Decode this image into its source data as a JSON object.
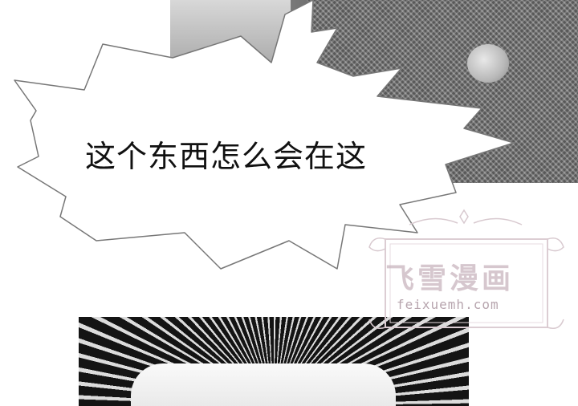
{
  "speech_bubble": {
    "text": "这个东西怎么会在这"
  },
  "watermark": {
    "title": "飞雪漫画",
    "url": "feixuemh.com"
  }
}
